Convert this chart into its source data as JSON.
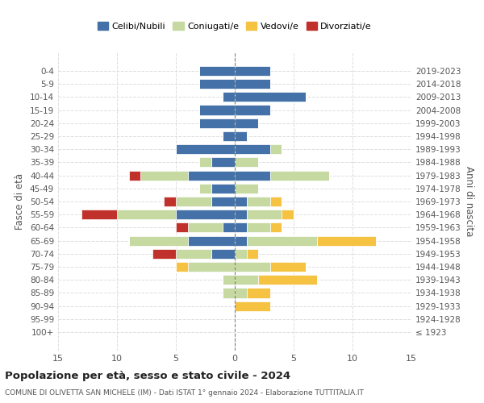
{
  "age_groups": [
    "100+",
    "95-99",
    "90-94",
    "85-89",
    "80-84",
    "75-79",
    "70-74",
    "65-69",
    "60-64",
    "55-59",
    "50-54",
    "45-49",
    "40-44",
    "35-39",
    "30-34",
    "25-29",
    "20-24",
    "15-19",
    "10-14",
    "5-9",
    "0-4"
  ],
  "birth_years": [
    "≤ 1923",
    "1924-1928",
    "1929-1933",
    "1934-1938",
    "1939-1943",
    "1944-1948",
    "1949-1953",
    "1954-1958",
    "1959-1963",
    "1964-1968",
    "1969-1973",
    "1974-1978",
    "1979-1983",
    "1984-1988",
    "1989-1993",
    "1994-1998",
    "1999-2003",
    "2004-2008",
    "2009-2013",
    "2014-2018",
    "2019-2023"
  ],
  "colors": {
    "celibi": "#4472a8",
    "coniugati": "#c5d9a0",
    "vedovi": "#f5c242",
    "divorziati": "#c0312b"
  },
  "males": {
    "celibi": [
      0,
      0,
      0,
      0,
      0,
      0,
      2,
      4,
      1,
      5,
      2,
      2,
      4,
      2,
      5,
      1,
      3,
      3,
      1,
      3,
      3
    ],
    "coniugati": [
      0,
      0,
      0,
      1,
      1,
      4,
      3,
      5,
      3,
      5,
      3,
      1,
      4,
      1,
      0,
      0,
      0,
      0,
      0,
      0,
      0
    ],
    "vedovi": [
      0,
      0,
      0,
      0,
      0,
      1,
      0,
      0,
      0,
      0,
      0,
      0,
      0,
      0,
      0,
      0,
      0,
      0,
      0,
      0,
      0
    ],
    "divorziati": [
      0,
      0,
      0,
      0,
      0,
      0,
      2,
      0,
      1,
      3,
      1,
      0,
      1,
      0,
      0,
      0,
      0,
      0,
      0,
      0,
      0
    ]
  },
  "females": {
    "celibi": [
      0,
      0,
      0,
      0,
      0,
      0,
      0,
      1,
      1,
      1,
      1,
      0,
      3,
      0,
      3,
      1,
      2,
      3,
      6,
      3,
      3
    ],
    "coniugati": [
      0,
      0,
      0,
      1,
      2,
      3,
      1,
      6,
      2,
      3,
      2,
      2,
      5,
      2,
      1,
      0,
      0,
      0,
      0,
      0,
      0
    ],
    "vedovi": [
      0,
      0,
      3,
      2,
      5,
      3,
      1,
      5,
      1,
      1,
      1,
      0,
      0,
      0,
      0,
      0,
      0,
      0,
      0,
      0,
      0
    ],
    "divorziati": [
      0,
      0,
      0,
      0,
      0,
      0,
      0,
      0,
      0,
      0,
      0,
      0,
      0,
      0,
      0,
      0,
      0,
      0,
      0,
      0,
      0
    ]
  },
  "xlim": 15,
  "title_main": "Popolazione per età, sesso e stato civile - 2024",
  "title_sub": "COMUNE DI OLIVETTA SAN MICHELE (IM) - Dati ISTAT 1° gennaio 2024 - Elaborazione TUTTITALIA.IT",
  "ylabel_left": "Fasce di età",
  "ylabel_right": "Anni di nascita",
  "legend_labels": [
    "Celibi/Nubili",
    "Coniugati/e",
    "Vedovi/e",
    "Divorziati/e"
  ]
}
